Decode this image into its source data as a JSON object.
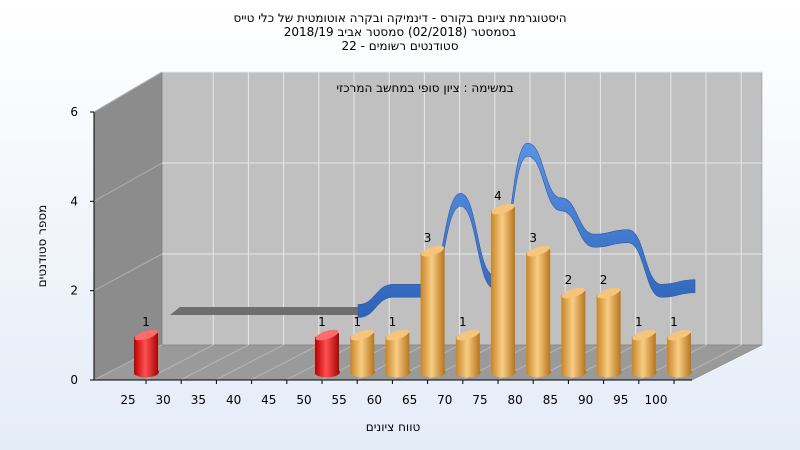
{
  "chart_data": {
    "type": "bar",
    "title": [
      "היסטוגרמת ציונים בקורס - דינמיקה ובקרה אוטומטית של כלי טייס",
      "בסמסטר  (02/2018)  סמסטר אביב 2018/19",
      "סטודנטים רשומים - 22"
    ],
    "annotation": "במשימה : ציון סופי במחשב המרכזי",
    "xlabel": "טווח ציונים",
    "ylabel": "מספר סטודנטים",
    "ylim": [
      0,
      6
    ],
    "yticks": [
      0,
      2,
      4,
      6
    ],
    "categories": [
      "25",
      "30",
      "35",
      "40",
      "45",
      "50",
      "55",
      "60",
      "65",
      "70",
      "75",
      "80",
      "85",
      "90",
      "95",
      "100"
    ],
    "values": [
      1,
      0,
      0,
      0,
      0,
      1,
      1,
      1,
      3,
      1,
      4,
      3,
      2,
      2,
      1,
      1
    ],
    "bar_colors": [
      "#e01010",
      null,
      null,
      null,
      null,
      "#e01010",
      "#e8a64a",
      "#e8a64a",
      "#e8a64a",
      "#e8a64a",
      "#e8a64a",
      "#e8a64a",
      "#e8a64a",
      "#e8a64a",
      "#e8a64a",
      "#e8a64a"
    ],
    "curve": [
      0,
      0,
      0,
      0,
      0,
      0,
      0,
      1.5,
      1.5,
      3.5,
      1.7,
      4.6,
      3.4,
      2.6,
      2.7,
      1.5,
      1.6
    ],
    "colors": {
      "fail_bar": "#e01010",
      "pass_bar": "#e8a64a",
      "curve": "#3d78d4",
      "wall": "#c0c0c0",
      "side_wall": "#8c8c8c",
      "floor": "#9a9a9a"
    }
  }
}
